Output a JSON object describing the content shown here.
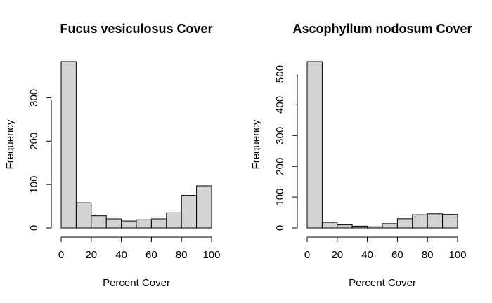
{
  "chart_data": [
    {
      "type": "bar",
      "title": "Fucus vesiculosus Cover",
      "xlabel": "Percent Cover",
      "ylabel": "Frequency",
      "bin_edges": [
        0,
        10,
        20,
        30,
        40,
        50,
        60,
        70,
        80,
        90,
        100
      ],
      "values": [
        383,
        58,
        28,
        21,
        16,
        19,
        21,
        35,
        75,
        97
      ],
      "xlim": [
        0,
        100
      ],
      "ylim": [
        0,
        383
      ],
      "xticks": [
        0,
        20,
        40,
        60,
        80,
        100
      ],
      "yticks": [
        0,
        100,
        200,
        300
      ],
      "bar_color": "#d3d3d3",
      "grid": false
    },
    {
      "type": "bar",
      "title": "Ascophyllum nodosum Cover",
      "xlabel": "Percent Cover",
      "ylabel": "Frequency",
      "bin_edges": [
        0,
        10,
        20,
        30,
        40,
        50,
        60,
        70,
        80,
        90,
        100
      ],
      "values": [
        540,
        18,
        10,
        6,
        4,
        14,
        30,
        43,
        46,
        44
      ],
      "xlim": [
        0,
        100
      ],
      "ylim": [
        0,
        540
      ],
      "xticks": [
        0,
        20,
        40,
        60,
        80,
        100
      ],
      "yticks": [
        0,
        100,
        200,
        300,
        400,
        500
      ],
      "bar_color": "#d3d3d3",
      "grid": false
    }
  ]
}
